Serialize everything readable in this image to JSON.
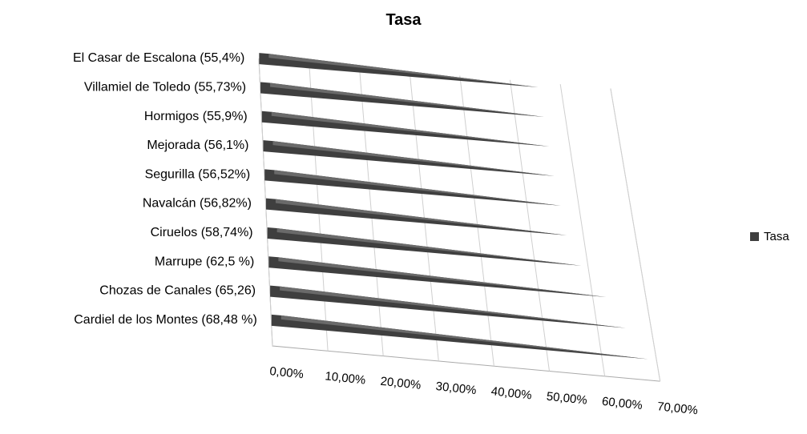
{
  "chart_data": {
    "type": "bar",
    "orientation": "horizontal",
    "style": "3d-cone",
    "title": "Tasa",
    "categories": [
      "El Casar de Escalona (55,4%)",
      "Villamiel de Toledo (55,73%)",
      "Hormigos (55,9%)",
      "Mejorada (56,1%)",
      "Segurilla (56,52%)",
      "Navalcán (56,82%)",
      "Ciruelos (58,74%)",
      "Marrupe (62,5 %)",
      "Chozas de Canales (65,26)",
      "Cardiel de los Montes (68,48 %)"
    ],
    "series": [
      {
        "name": "Tasa",
        "values": [
          55.4,
          55.73,
          55.9,
          56.1,
          56.52,
          56.82,
          58.74,
          62.5,
          65.26,
          68.48
        ]
      }
    ],
    "x_ticks": [
      "0,00%",
      "10,00%",
      "20,00%",
      "30,00%",
      "40,00%",
      "50,00%",
      "60,00%",
      "70,00%"
    ],
    "xlim": [
      0,
      70
    ],
    "grid": true,
    "legend_position": "right",
    "bar_color": "#3f3f3f"
  }
}
